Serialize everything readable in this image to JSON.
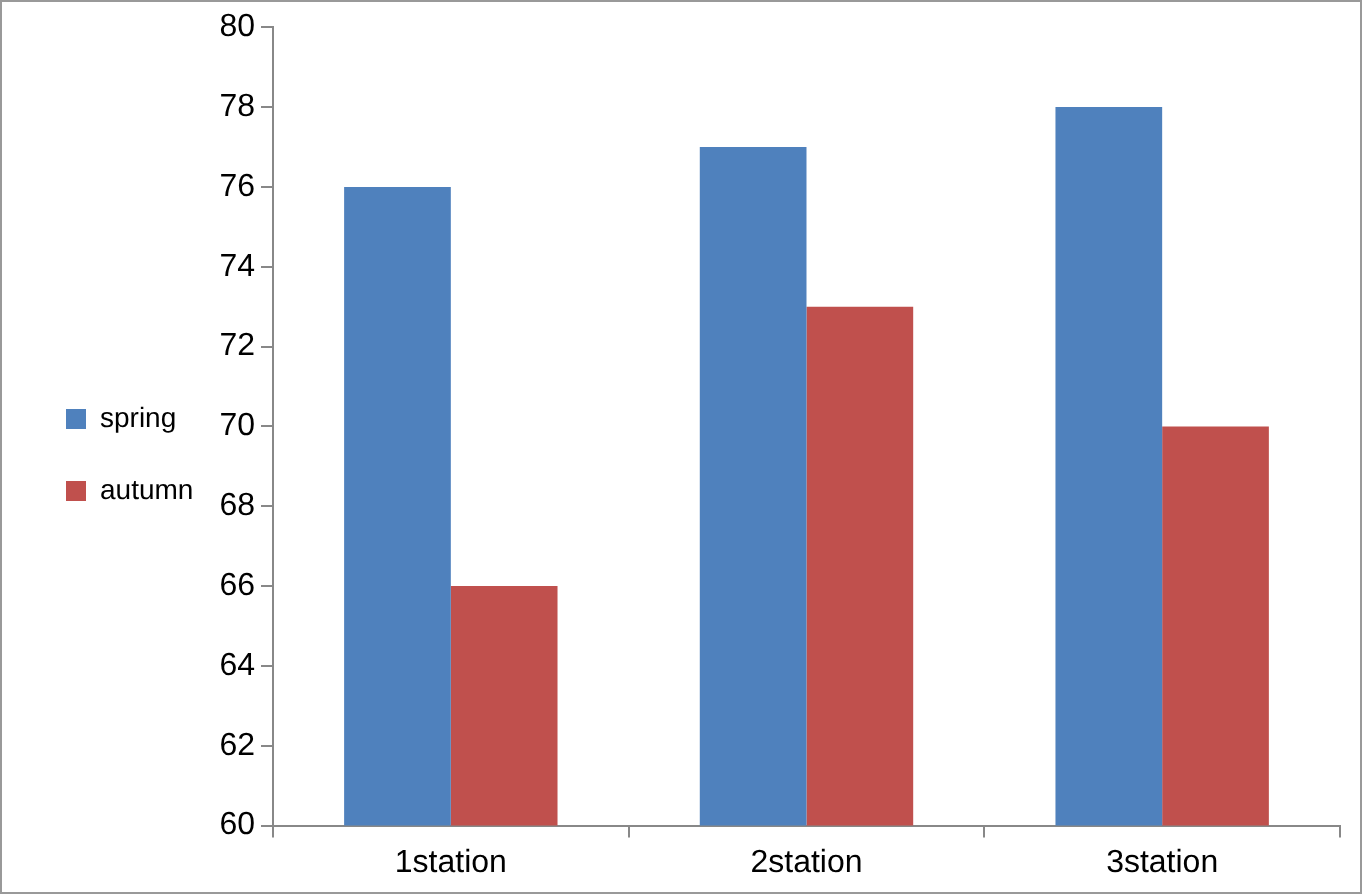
{
  "chart_data": {
    "type": "bar",
    "categories": [
      "1station",
      "2station",
      "3station"
    ],
    "series": [
      {
        "name": "spring",
        "color": "#4f81bd",
        "values": [
          76,
          77,
          78
        ]
      },
      {
        "name": "autumn",
        "color": "#c0504d",
        "values": [
          66,
          73,
          70
        ]
      }
    ],
    "ylim": [
      60,
      80
    ],
    "yticks": [
      60,
      62,
      64,
      66,
      68,
      70,
      72,
      74,
      76,
      78,
      80
    ],
    "grid": false,
    "legend": "left"
  }
}
